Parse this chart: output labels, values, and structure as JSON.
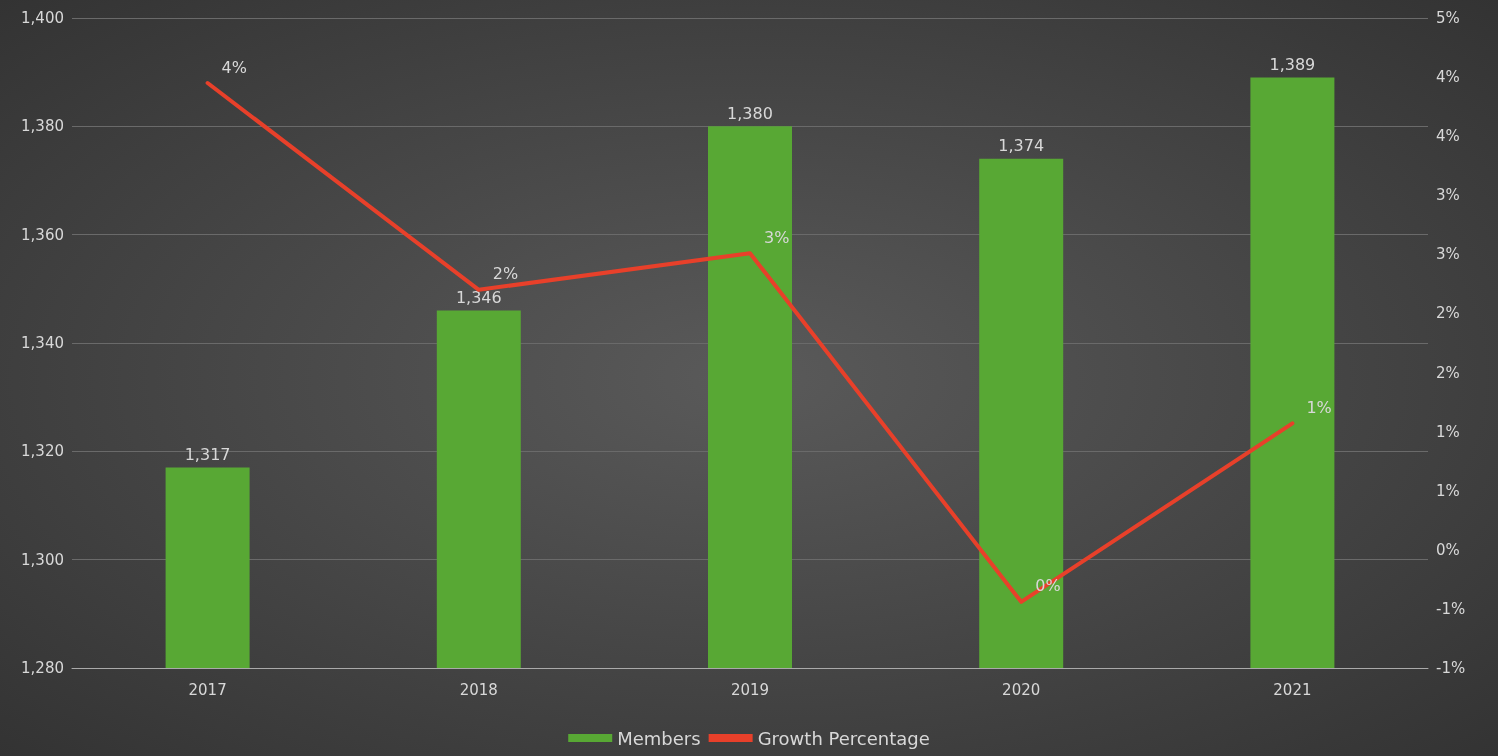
{
  "chart_data": {
    "type": "bar",
    "categories": [
      "2017",
      "2018",
      "2019",
      "2020",
      "2021"
    ],
    "series": [
      {
        "name": "Members",
        "type": "bar",
        "color": "#58a834",
        "values": [
          1317,
          1346,
          1380,
          1374,
          1389
        ],
        "value_labels": [
          "1,317",
          "1,346",
          "1,380",
          "1,374",
          "1,389"
        ]
      },
      {
        "name": "Growth Percentage",
        "type": "line",
        "axis": "y2",
        "color": "#e8402a",
        "values": [
          3.95,
          2.2,
          2.51,
          -0.44,
          1.07
        ],
        "value_labels": [
          "4%",
          "2%",
          "3%",
          "0%",
          "1%"
        ]
      }
    ],
    "ylim": [
      1280,
      1400
    ],
    "yticks": [
      {
        "value": 1280,
        "label": "1,280"
      },
      {
        "value": 1300,
        "label": "1,300"
      },
      {
        "value": 1320,
        "label": "1,320"
      },
      {
        "value": 1340,
        "label": "1,340"
      },
      {
        "value": 1360,
        "label": "1,360"
      },
      {
        "value": 1380,
        "label": "1,380"
      },
      {
        "value": 1400,
        "label": "1,400"
      }
    ],
    "y2lim": [
      -1,
      4.5
    ],
    "y2ticks": [
      {
        "value": -1,
        "label": "-1%"
      },
      {
        "value": -0.5,
        "label": "-1%"
      },
      {
        "value": 0,
        "label": "0%"
      },
      {
        "value": 0.5,
        "label": "1%"
      },
      {
        "value": 1,
        "label": "1%"
      },
      {
        "value": 1.5,
        "label": "2%"
      },
      {
        "value": 2,
        "label": "2%"
      },
      {
        "value": 2.5,
        "label": "3%"
      },
      {
        "value": 3,
        "label": "3%"
      },
      {
        "value": 3.5,
        "label": "4%"
      },
      {
        "value": 4,
        "label": "4%"
      },
      {
        "value": 4.5,
        "label": "5%"
      }
    ],
    "grid": "y",
    "legend": "bottom",
    "marker": "none",
    "line_style": "solid"
  }
}
